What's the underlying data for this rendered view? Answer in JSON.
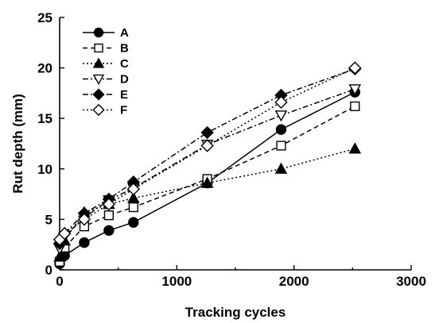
{
  "chart_data": {
    "type": "line",
    "xlabel": "Tracking cycles",
    "ylabel": "Rut depth (mm)",
    "xlim": [
      0,
      3000
    ],
    "ylim": [
      0,
      25
    ],
    "xticks": [
      0,
      1000,
      2000,
      3000
    ],
    "yticks": [
      0,
      5,
      10,
      15,
      20,
      25
    ],
    "grid": false,
    "legend_position": "top-left",
    "series": [
      {
        "name": "A",
        "marker": "circle-filled",
        "dash": "solid",
        "x": [
          0,
          42,
          210,
          420,
          630,
          1260,
          1890,
          2520
        ],
        "y": [
          0.6,
          1.4,
          2.7,
          3.9,
          4.7,
          8.6,
          13.9,
          17.6
        ]
      },
      {
        "name": "B",
        "marker": "square-open",
        "dash": "dashed",
        "x": [
          0,
          42,
          210,
          420,
          630,
          1260,
          1890,
          2520
        ],
        "y": [
          0.8,
          2.2,
          4.3,
          5.4,
          6.2,
          9.0,
          12.3,
          16.2
        ]
      },
      {
        "name": "C",
        "marker": "triangle-filled",
        "dash": "dotted",
        "x": [
          0,
          42,
          210,
          420,
          630,
          1260,
          1890,
          2520
        ],
        "y": [
          1.3,
          2.9,
          5.7,
          6.5,
          7.1,
          8.6,
          10.0,
          12.0
        ]
      },
      {
        "name": "D",
        "marker": "triangle-down-open",
        "dash": "dashdot",
        "x": [
          0,
          42,
          210,
          420,
          630,
          1260,
          1890,
          2520
        ],
        "y": [
          2.1,
          3.3,
          5.2,
          6.9,
          8.1,
          12.4,
          15.3,
          17.9
        ]
      },
      {
        "name": "E",
        "marker": "diamond-filled",
        "dash": "dashdot",
        "x": [
          0,
          42,
          210,
          420,
          630,
          1260,
          1890,
          2520
        ],
        "y": [
          2.6,
          3.6,
          5.6,
          7.0,
          8.7,
          13.6,
          17.3,
          19.9
        ]
      },
      {
        "name": "F",
        "marker": "diamond-open",
        "dash": "dotted",
        "x": [
          0,
          42,
          210,
          420,
          630,
          1260,
          1890,
          2520
        ],
        "y": [
          3.0,
          3.6,
          5.0,
          6.5,
          8.0,
          12.3,
          16.6,
          20.0
        ]
      }
    ]
  }
}
